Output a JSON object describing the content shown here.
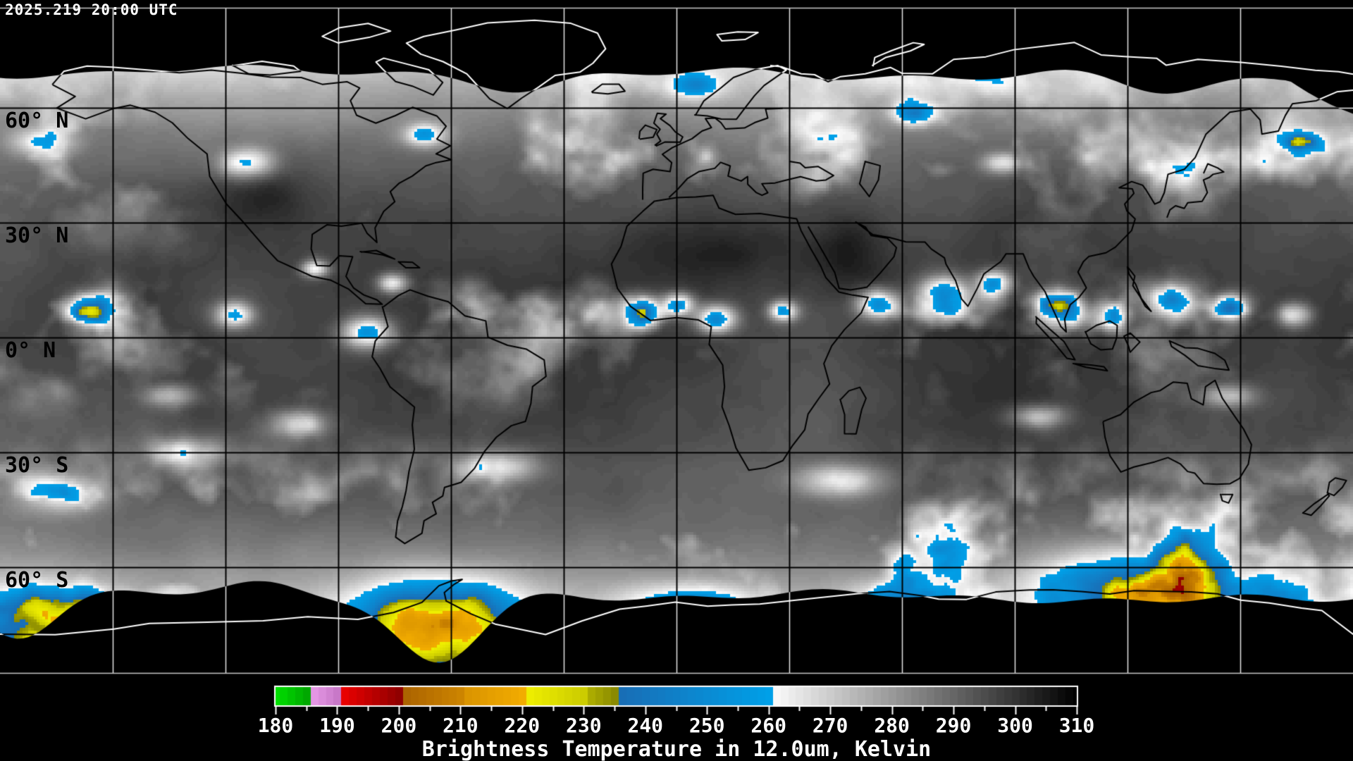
{
  "header": {
    "timestamp": "2025.219 20:00 UTC"
  },
  "map": {
    "projection": "equirectangular",
    "grid_interval_deg": 30,
    "lat_labels": [
      {
        "label": "60° N",
        "lat": 60
      },
      {
        "label": "30° N",
        "lat": 30
      },
      {
        "label": "0° N",
        "lat": 0
      },
      {
        "label": "30° S",
        "lat": -30
      },
      {
        "label": "60° S",
        "lat": -60
      }
    ]
  },
  "colorbar": {
    "caption": "Brightness Temperature in 12.0um, Kelvin",
    "unit": "Kelvin",
    "min": 180,
    "max": 310,
    "tick_step_labeled": 10,
    "tick_step_minor": 5,
    "tick_labels": [
      "180",
      "190",
      "200",
      "210",
      "220",
      "230",
      "240",
      "250",
      "260",
      "270",
      "280",
      "290",
      "300",
      "310"
    ],
    "palette": [
      {
        "from": 180,
        "to": 185,
        "color_start": "#00e000",
        "color_end": "#00a800"
      },
      {
        "from": 185,
        "to": 190,
        "color_start": "#eca0ec",
        "color_end": "#c878c8"
      },
      {
        "from": 190,
        "to": 200,
        "color_start": "#f50000",
        "color_end": "#900000"
      },
      {
        "from": 200,
        "to": 210,
        "color_start": "#a86000",
        "color_end": "#cc8400"
      },
      {
        "from": 210,
        "to": 220,
        "color_start": "#d89200",
        "color_end": "#f2ac00"
      },
      {
        "from": 220,
        "to": 230,
        "color_start": "#f2f200",
        "color_end": "#cccc00"
      },
      {
        "from": 230,
        "to": 235,
        "color_start": "#b6b600",
        "color_end": "#8a8a00"
      },
      {
        "from": 235,
        "to": 260,
        "color_start": "#1a6cb4",
        "color_end": "#00a0e8"
      },
      {
        "from": 260,
        "to": 310,
        "color_start": "#ffffff",
        "color_end": "#000000"
      }
    ]
  },
  "colors": {
    "background": "#000000",
    "grid_on_data": "#000000",
    "grid_on_void": "#c8c8c8",
    "coast_on_data": "#000000",
    "coast_on_void": "#ffffff",
    "text": "#ffffff"
  }
}
